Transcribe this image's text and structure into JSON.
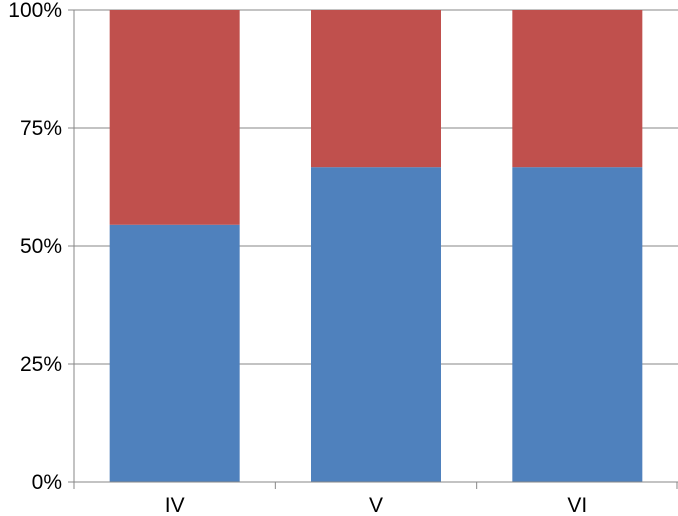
{
  "chart_data": {
    "type": "bar",
    "stacked": true,
    "normalized": true,
    "categories": [
      "IV",
      "V",
      "VI"
    ],
    "series": [
      {
        "values": [
          54.5,
          66.7,
          66.7
        ],
        "color": "#4F81BD"
      },
      {
        "values": [
          45.5,
          33.3,
          33.3
        ],
        "color": "#C0504D"
      }
    ],
    "y_ticks": [
      {
        "value": 0,
        "label": "0%"
      },
      {
        "value": 25,
        "label": "25%"
      },
      {
        "value": 50,
        "label": "50%"
      },
      {
        "value": 75,
        "label": "75%"
      },
      {
        "value": 100,
        "label": "100%"
      }
    ],
    "ylim": [
      0,
      100
    ],
    "title": "",
    "xlabel": "",
    "ylabel": "",
    "grid": true,
    "legend": "none"
  }
}
